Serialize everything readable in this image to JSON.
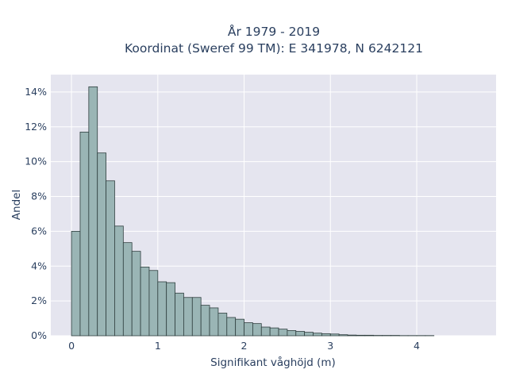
{
  "chart_data": {
    "type": "bar",
    "title_line1": "År 1979 - 2019",
    "title_line2": "Koordinat (Sweref 99 TM): E 341978, N 6242121",
    "xlabel": "Signifikant våghöjd (m)",
    "ylabel": "Andel",
    "xlim": [
      -0.24,
      4.92
    ],
    "ylim": [
      0,
      15
    ],
    "x_ticks": [
      {
        "value": 0,
        "label": "0"
      },
      {
        "value": 1,
        "label": "1"
      },
      {
        "value": 2,
        "label": "2"
      },
      {
        "value": 3,
        "label": "3"
      },
      {
        "value": 4,
        "label": "4"
      }
    ],
    "y_ticks": [
      {
        "value": 0,
        "label": "0%"
      },
      {
        "value": 2,
        "label": "2%"
      },
      {
        "value": 4,
        "label": "4%"
      },
      {
        "value": 6,
        "label": "6%"
      },
      {
        "value": 8,
        "label": "8%"
      },
      {
        "value": 10,
        "label": "10%"
      },
      {
        "value": 12,
        "label": "12%"
      },
      {
        "value": 14,
        "label": "14%"
      }
    ],
    "bin_start": 0.0,
    "bin_width": 0.1,
    "values": [
      6.0,
      11.7,
      14.3,
      10.5,
      8.9,
      6.3,
      5.35,
      4.85,
      3.95,
      3.75,
      3.1,
      3.05,
      2.45,
      2.2,
      2.2,
      1.75,
      1.6,
      1.3,
      1.05,
      0.95,
      0.75,
      0.7,
      0.5,
      0.45,
      0.38,
      0.3,
      0.25,
      0.2,
      0.15,
      0.12,
      0.1,
      0.06,
      0.04,
      0.03,
      0.03,
      0.02,
      0.02,
      0.02,
      0.01,
      0.01,
      0.01,
      0.01
    ],
    "bar_color": "#9ab5b5",
    "bar_edge_color": "#2f3f3f",
    "plot_bg_color": "#e5e5ef",
    "grid": true
  }
}
